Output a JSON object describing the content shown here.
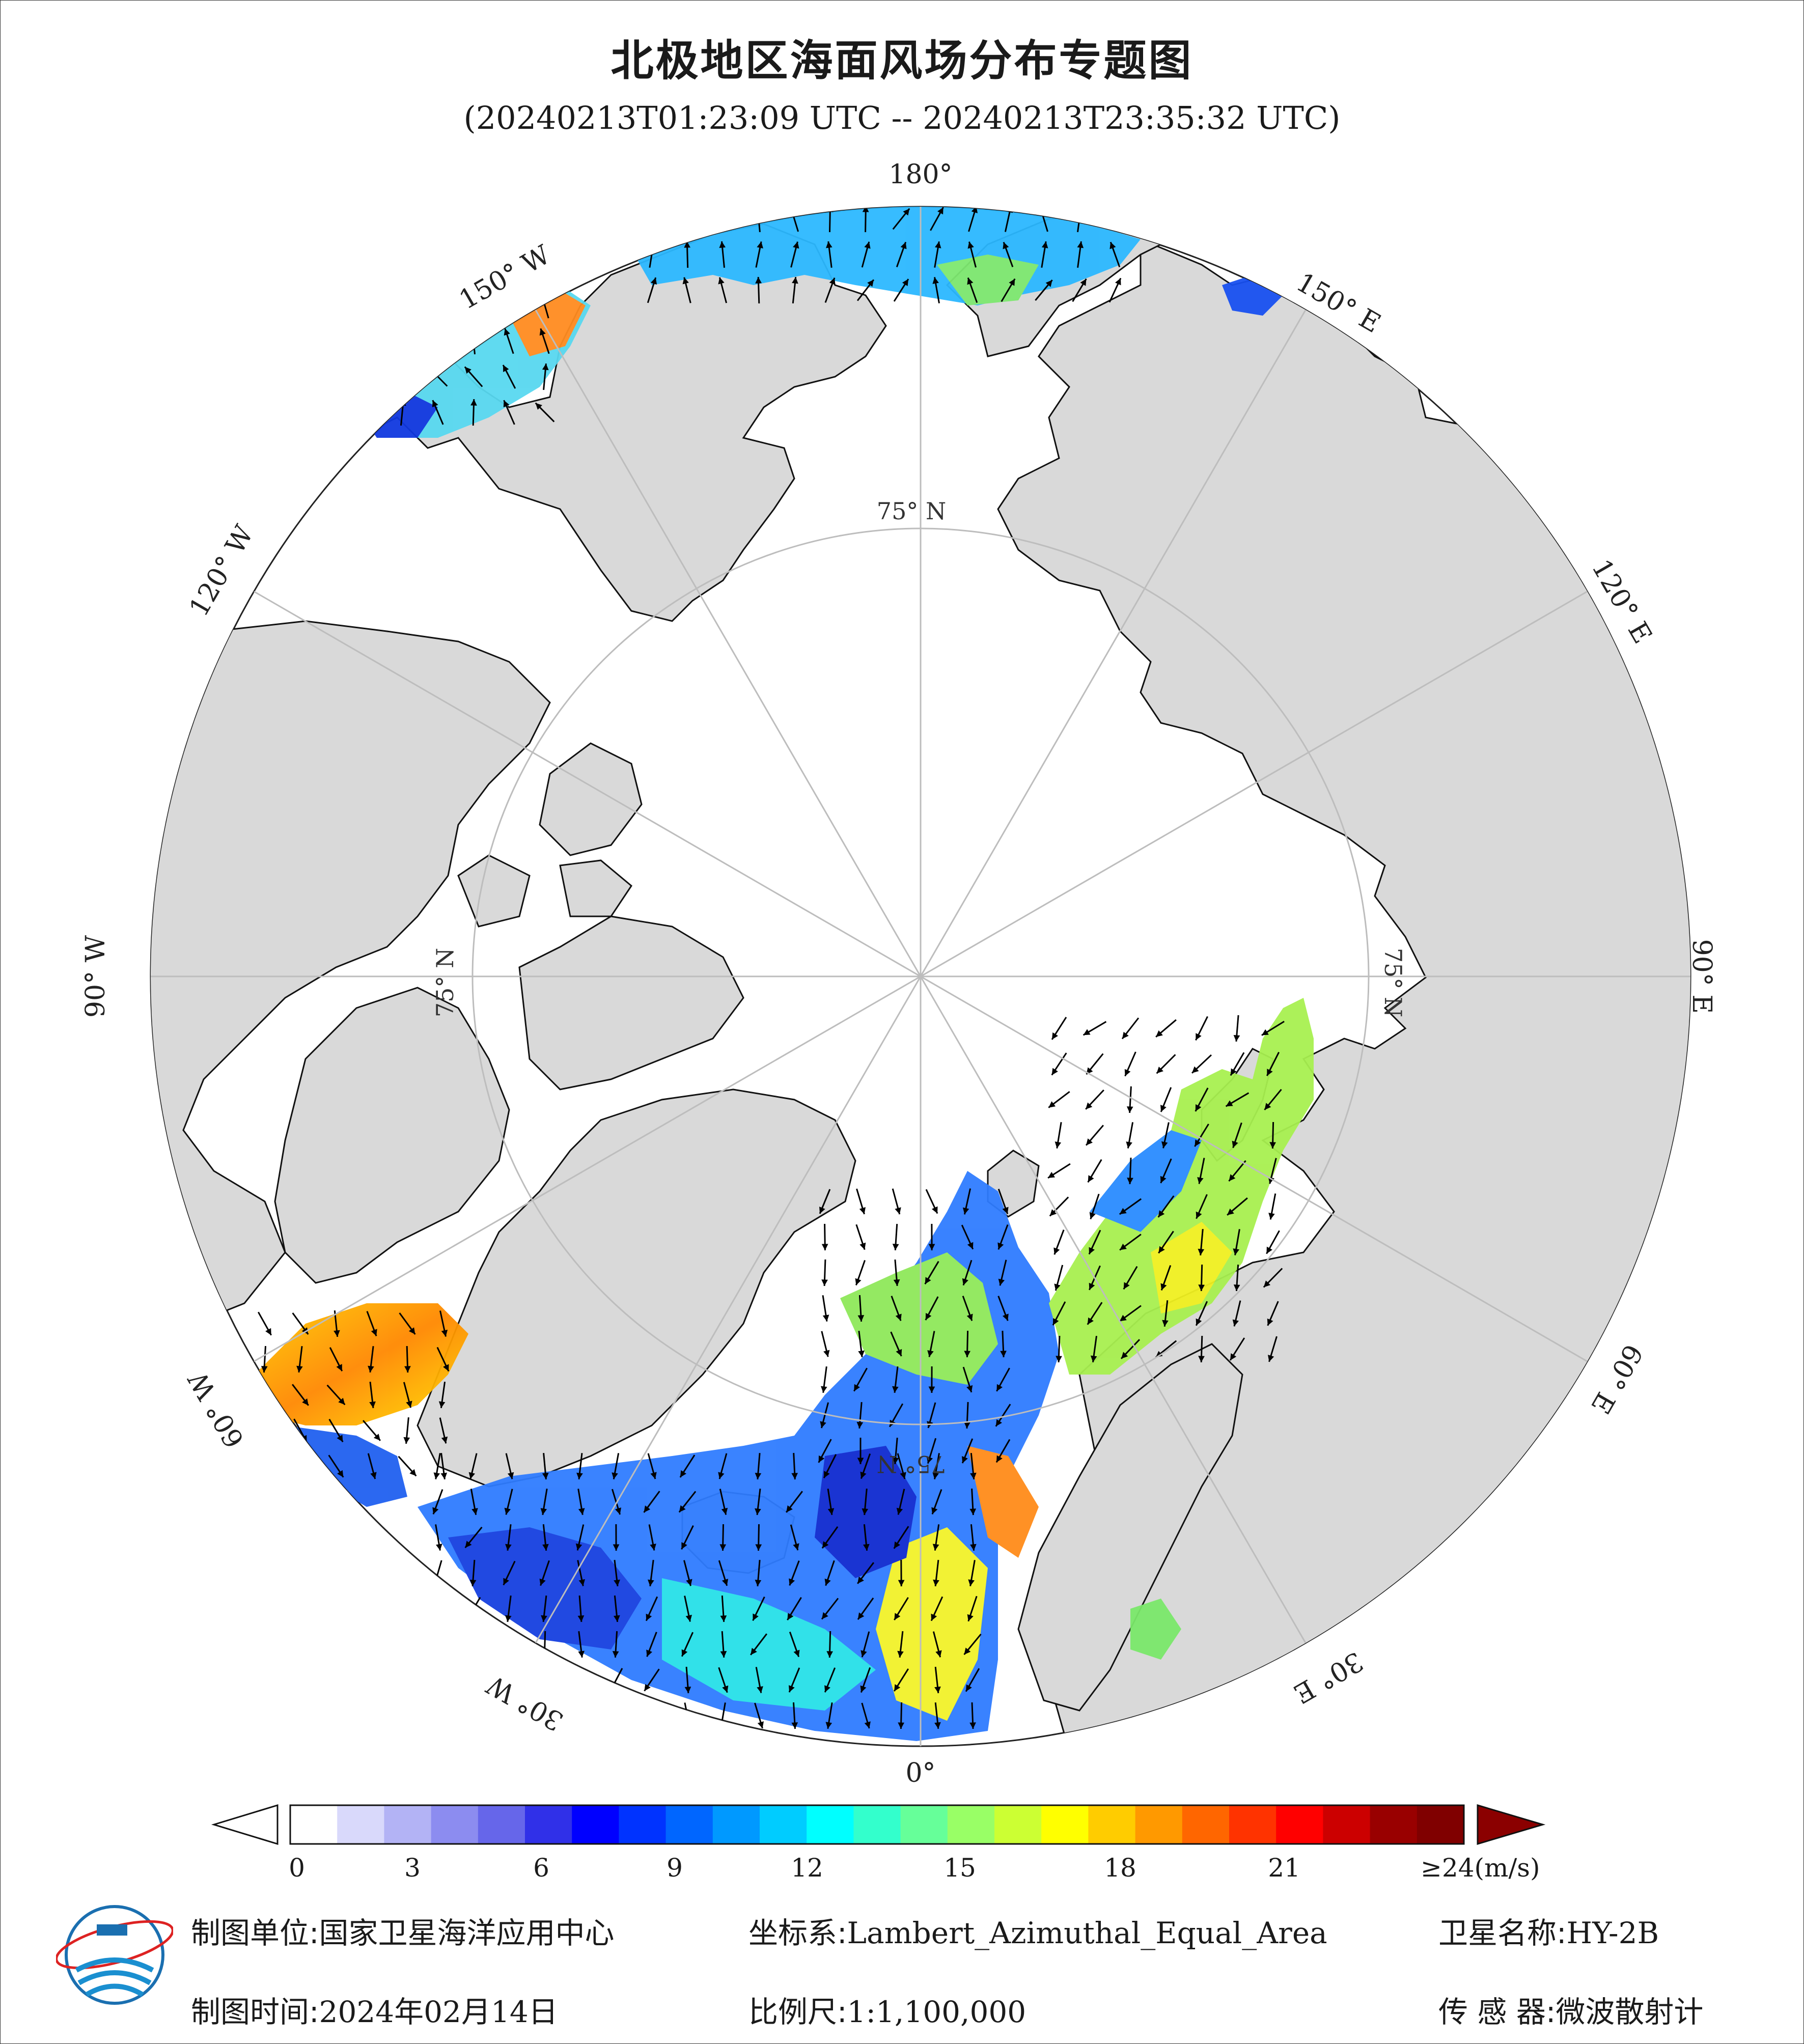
{
  "title": "北极地区海面风场分布专题图",
  "subtitle": "(20240213T01:23:09 UTC -- 20240213T23:35:32 UTC)",
  "map_labels": {
    "lon_180": "180°",
    "lon_150w": "150° W",
    "lon_120w": "120° W",
    "lon_90w": "90° W",
    "lon_60w": "60° W",
    "lon_30w": "30° W",
    "lon_0": "0°",
    "lon_30e": "30° E",
    "lon_60e": "60° E",
    "lon_90e": "90° E",
    "lon_120e": "120° E",
    "lon_150e": "150° E",
    "lat_top": "75° N",
    "lat_left": "75° N",
    "lat_right": "75° N",
    "lat_bottom": "75° N"
  },
  "colorbar": {
    "ticks": [
      "0",
      "3",
      "6",
      "9",
      "12",
      "15",
      "18",
      "21"
    ],
    "max_label": "≥24",
    "unit": "(m/s)",
    "colors": [
      "#ffffff",
      "#d9d9fb",
      "#b3b3f5",
      "#8c8cf0",
      "#6666ea",
      "#3030e8",
      "#0000ff",
      "#0033ff",
      "#0066ff",
      "#0099ff",
      "#00ccff",
      "#00ffff",
      "#33ffcc",
      "#66ff99",
      "#99ff66",
      "#ccff33",
      "#ffff00",
      "#ffcc00",
      "#ff9900",
      "#ff6600",
      "#ff3300",
      "#ff0000",
      "#cc0000",
      "#990000",
      "#800000"
    ]
  },
  "footer": {
    "unit_label": "制图单位:",
    "unit_value": "国家卫星海洋应用中心",
    "coord_label": "坐标系:",
    "coord_value": "Lambert_Azimuthal_Equal_Area",
    "sat_label": "卫星名称:",
    "sat_value": "HY-2B",
    "time_label": "制图时间:",
    "time_value": "2024年02月14日",
    "scale_label": "比例尺:",
    "scale_value": "1:1,100,000",
    "sensor_label": "传 感 器:",
    "sensor_value": "微波散射计"
  }
}
